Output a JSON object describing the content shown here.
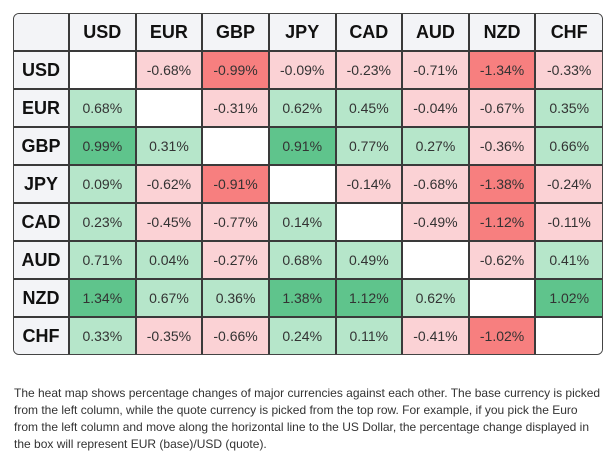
{
  "chart_data": {
    "type": "heatmap",
    "currencies": [
      "USD",
      "EUR",
      "GBP",
      "JPY",
      "CAD",
      "AUD",
      "NZD",
      "CHF"
    ],
    "unit": "%",
    "values": [
      [
        null,
        -0.68,
        -0.99,
        -0.09,
        -0.23,
        -0.71,
        -1.34,
        -0.33
      ],
      [
        0.68,
        null,
        -0.31,
        0.62,
        0.45,
        -0.04,
        -0.67,
        0.35
      ],
      [
        0.99,
        0.31,
        null,
        0.91,
        0.77,
        0.27,
        -0.36,
        0.66
      ],
      [
        0.09,
        -0.62,
        -0.91,
        null,
        -0.14,
        -0.68,
        -1.38,
        -0.24
      ],
      [
        0.23,
        -0.45,
        -0.77,
        0.14,
        null,
        -0.49,
        -1.12,
        -0.11
      ],
      [
        0.71,
        0.04,
        -0.27,
        0.68,
        0.49,
        null,
        -0.62,
        0.41
      ],
      [
        1.34,
        0.67,
        0.36,
        1.38,
        1.12,
        0.62,
        null,
        1.02
      ],
      [
        0.33,
        -0.35,
        -0.66,
        0.24,
        0.11,
        -0.41,
        -1.02,
        null
      ]
    ],
    "colors": {
      "strong_negative": "#f77f7f",
      "negative": "#fbd2d5",
      "positive": "#b6e6ca",
      "strong_positive": "#5fc48c"
    }
  },
  "note": "The heat map shows percentage changes of major currencies against each other. The base currency is picked from the left column, while the quote currency is picked from the top row. For example, if you pick the Euro from the left column and move along the horizontal line to the US Dollar, the percentage change displayed in the box will represent EUR (base)/USD (quote)."
}
